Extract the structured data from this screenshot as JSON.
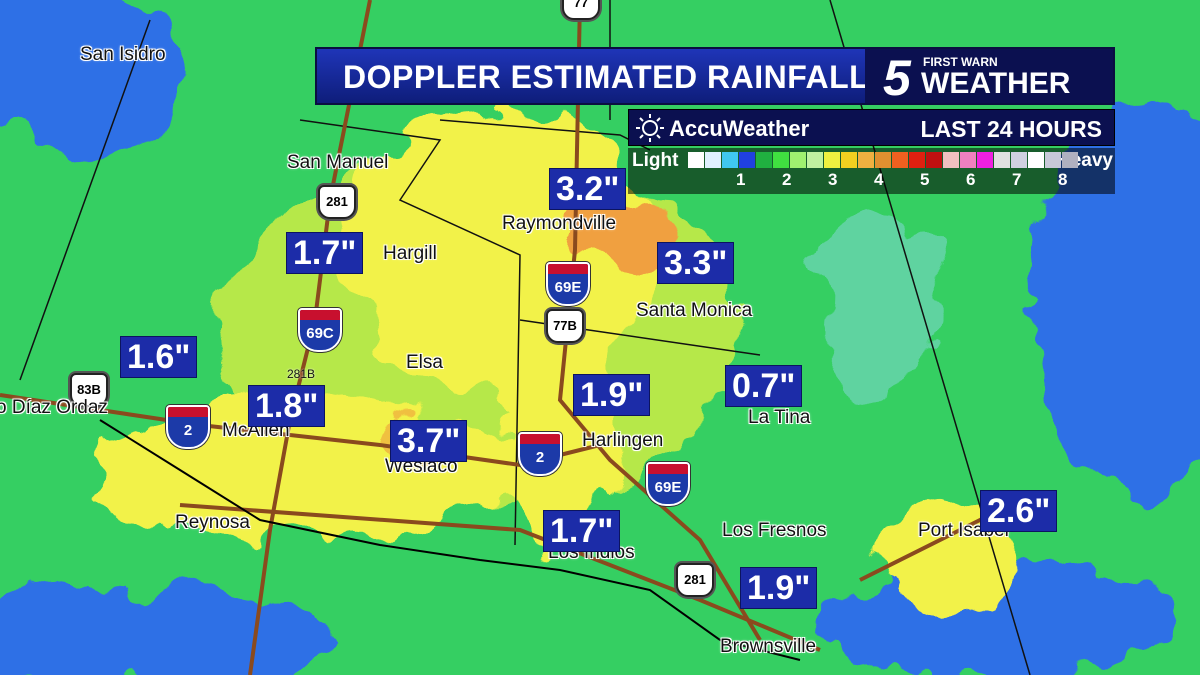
{
  "header": {
    "title": "DOPPLER ESTIMATED RAINFALL",
    "brand_number": "5",
    "brand_top": "FIRST WARN",
    "brand_word": "WEATHER",
    "provider": "AccuWeather",
    "period": "LAST 24 HOURS"
  },
  "legend": {
    "low": "Light",
    "high": "Heavy",
    "ticks": [
      1,
      2,
      3,
      4,
      5,
      6,
      7,
      8
    ]
  },
  "places": [
    "San Isidro",
    "San Manuel",
    "Hargill",
    "Raymondville",
    "Santa Monica",
    "Elsa",
    "McAllen",
    "Wesiaco",
    "Harlingen",
    "La Tina",
    "Reynosa",
    "Los Indios",
    "Los Fresnos",
    "Port Isabel",
    "Brownsville",
    "o Díaz Ordaz"
  ],
  "rainfall": [
    "3.2\"",
    "3.3\"",
    "1.7\"",
    "1.6\"",
    "1.8\"",
    "3.7\"",
    "1.9\"",
    "0.7\"",
    "1.7\"",
    "2.6\"",
    "1.9\""
  ],
  "shields": [
    "281",
    "69C",
    "281B",
    "83B",
    "2",
    "2",
    "69E",
    "77B",
    "69E",
    "281",
    "77"
  ]
}
